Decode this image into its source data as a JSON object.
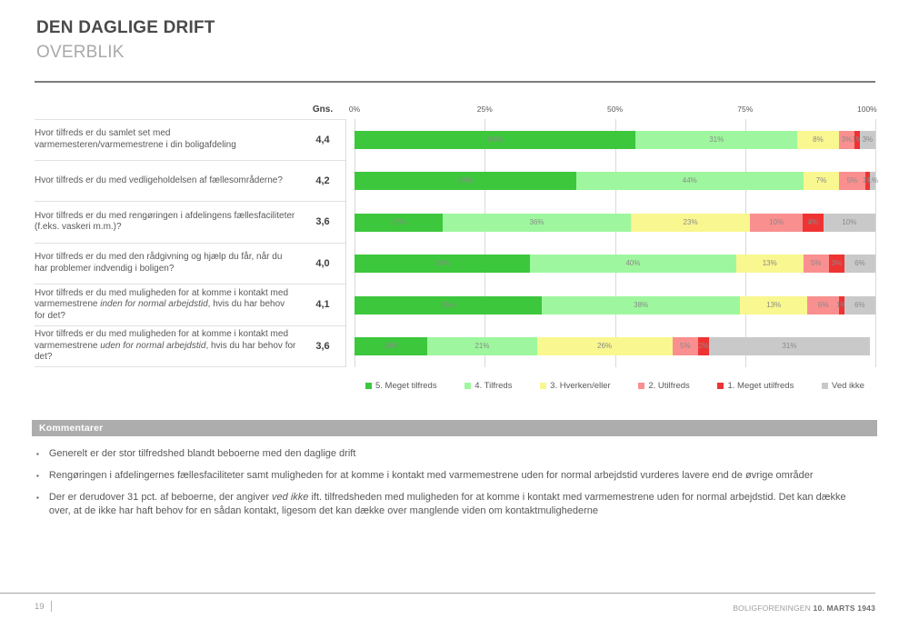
{
  "header": {
    "title": "DEN DAGLIGE DRIFT",
    "subtitle": "OVERBLIK"
  },
  "chart": {
    "gns_label": "Gns.",
    "axis_ticks": [
      {
        "label": "0%",
        "pos": 0
      },
      {
        "label": "25%",
        "pos": 25
      },
      {
        "label": "50%",
        "pos": 50
      },
      {
        "label": "75%",
        "pos": 75
      },
      {
        "label": "100%",
        "pos": 100
      }
    ],
    "rows": [
      {
        "question": {
          "before": "Hvor tilfreds er du samlet set med varmemesteren/varmemestrene i din boligafdeling",
          "italic": "",
          "after": ""
        },
        "gns": "4,4"
      },
      {
        "question": {
          "before": "Hvor tilfreds er du med vedligeholdelsen af fællesområderne?",
          "italic": "",
          "after": ""
        },
        "gns": "4,2"
      },
      {
        "question": {
          "before": "Hvor tilfreds er du med rengøringen i afdelingens fællesfaciliteter (f.eks. vaskeri m.m.)?",
          "italic": "",
          "after": ""
        },
        "gns": "3,6"
      },
      {
        "question": {
          "before": "Hvor tilfreds er du med den rådgivning og hjælp du får, når du har problemer indvendig i boligen?",
          "italic": "",
          "after": ""
        },
        "gns": "4,0"
      },
      {
        "question": {
          "before": "Hvor tilfreds er du med muligheden for at komme i kontakt med varmemestrene ",
          "italic": "inden for normal arbejdstid",
          "after": ", hvis du har behov for det?"
        },
        "gns": "4,1"
      },
      {
        "question": {
          "before": "Hvor tilfreds er du med muligheden for at komme i kontakt med varmemestrene ",
          "italic": "uden for normal arbejdstid",
          "after": ", hvis du har behov for det?"
        },
        "gns": "3,6"
      }
    ]
  },
  "chart_data": {
    "type": "bar",
    "orientation": "horizontal-stacked",
    "title": "",
    "xlabel": "",
    "ylabel": "",
    "xlim": [
      0,
      100
    ],
    "x_ticks": [
      "0%",
      "25%",
      "50%",
      "75%",
      "100%"
    ],
    "grid": "vertical",
    "legend_position": "bottom",
    "value_label_suffix": "%",
    "categories": [
      "Hvor tilfreds er du samlet set med varmemesteren/varmemestrene i din boligafdeling",
      "Hvor tilfreds er du med vedligeholdelsen af fællesområderne?",
      "Hvor tilfreds er du med rengøringen i afdelingens fællesfaciliteter (f.eks. vaskeri m.m.)?",
      "Hvor tilfreds er du med den rådgivning og hjælp du får, når du har problemer indvendig i boligen?",
      "Hvor tilfreds er du med muligheden for at komme i kontakt med varmemestrene inden for normal arbejdstid, hvis du har behov for det?",
      "Hvor tilfreds er du med muligheden for at komme i kontakt med varmemestrene uden for normal arbejdstid, hvis du har behov for det?"
    ],
    "averages_gns": [
      "4,4",
      "4,2",
      "3,6",
      "4,0",
      "4,1",
      "3,6"
    ],
    "series": [
      {
        "name": "5. Meget tilfreds",
        "color": "#3dc73d",
        "values": [
          54,
          43,
          17,
          34,
          36,
          14
        ]
      },
      {
        "name": "4. Tilfreds",
        "color": "#9ef79e",
        "values": [
          31,
          44,
          36,
          40,
          38,
          21
        ]
      },
      {
        "name": "3. Hverken/eller",
        "color": "#f9f78f",
        "values": [
          8,
          7,
          23,
          13,
          13,
          26
        ]
      },
      {
        "name": "2. Utilfreds",
        "color": "#f98f8f",
        "values": [
          3,
          5,
          10,
          5,
          6,
          5
        ]
      },
      {
        "name": "1. Meget utilfreds",
        "color": "#ef3333",
        "values": [
          1,
          1,
          4,
          3,
          1,
          2
        ]
      },
      {
        "name": "Ved ikke",
        "color": "#c9c9c9",
        "values": [
          3,
          1,
          10,
          6,
          6,
          31
        ]
      }
    ]
  },
  "comments": {
    "header": "Kommentarer",
    "bullets": [
      {
        "before": "Generelt er der stor tilfredshed blandt beboerne med den daglige drift",
        "italic": "",
        "after": ""
      },
      {
        "before": "Rengøringen i afdelingernes fællesfaciliteter samt muligheden for at komme i kontakt med varmemestrene uden for normal arbejdstid vurderes lavere end de øvrige områder",
        "italic": "",
        "after": ""
      },
      {
        "before": "Der er derudover 31 pct. af beboerne, der angiver ",
        "italic": "ved ikke",
        "after": " ift. tilfredsheden med muligheden for at komme i kontakt med varmemestrene uden for normal arbejdstid. Det kan dække over, at de ikke har haft behov for en sådan kontakt, ligesom det kan dække over manglende viden om kontaktmulighederne"
      }
    ]
  },
  "footer": {
    "page": "19",
    "org": "BOLIGFORENINGEN ",
    "date": "10. MARTS 1943"
  }
}
